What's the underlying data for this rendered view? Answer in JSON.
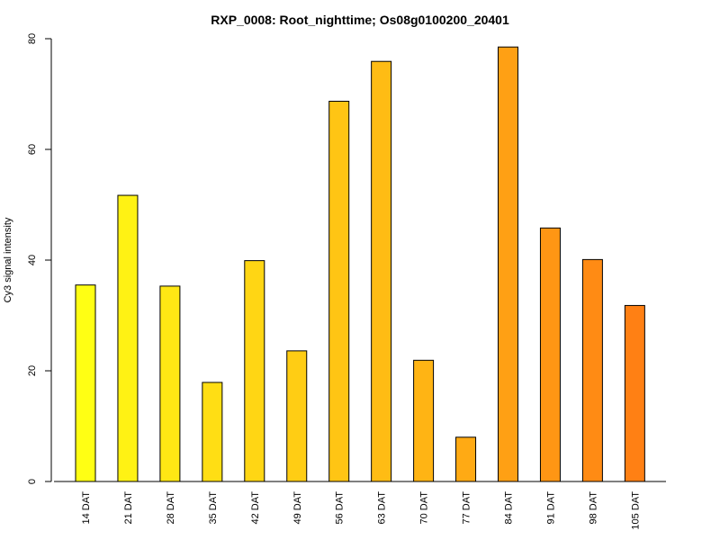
{
  "chart_data": {
    "type": "bar",
    "title": "RXP_0008: Root_nighttime; Os08g0100200_20401",
    "xlabel": "",
    "ylabel": "Cy3 signal intensity",
    "categories": [
      "14 DAT",
      "21 DAT",
      "28 DAT",
      "35 DAT",
      "42 DAT",
      "49 DAT",
      "56 DAT",
      "63 DAT",
      "70 DAT",
      "77 DAT",
      "84 DAT",
      "91 DAT",
      "98 DAT",
      "105 DAT"
    ],
    "values": [
      35.5,
      51.7,
      35.3,
      17.9,
      39.9,
      23.6,
      68.7,
      75.9,
      21.9,
      8.0,
      78.5,
      45.8,
      40.1,
      31.8
    ],
    "colors": [
      "#FFFF14",
      "#FFF214",
      "#FFE714",
      "#FFDE14",
      "#FFD614",
      "#FFCD14",
      "#FFC514",
      "#FFBC14",
      "#FFB414",
      "#FFAA14",
      "#FFA014",
      "#FF9614",
      "#FF8B14",
      "#FF8014"
    ],
    "ylim": [
      0,
      80
    ],
    "yticks": [
      "0",
      "20",
      "40",
      "60",
      "80"
    ],
    "grid": false
  }
}
